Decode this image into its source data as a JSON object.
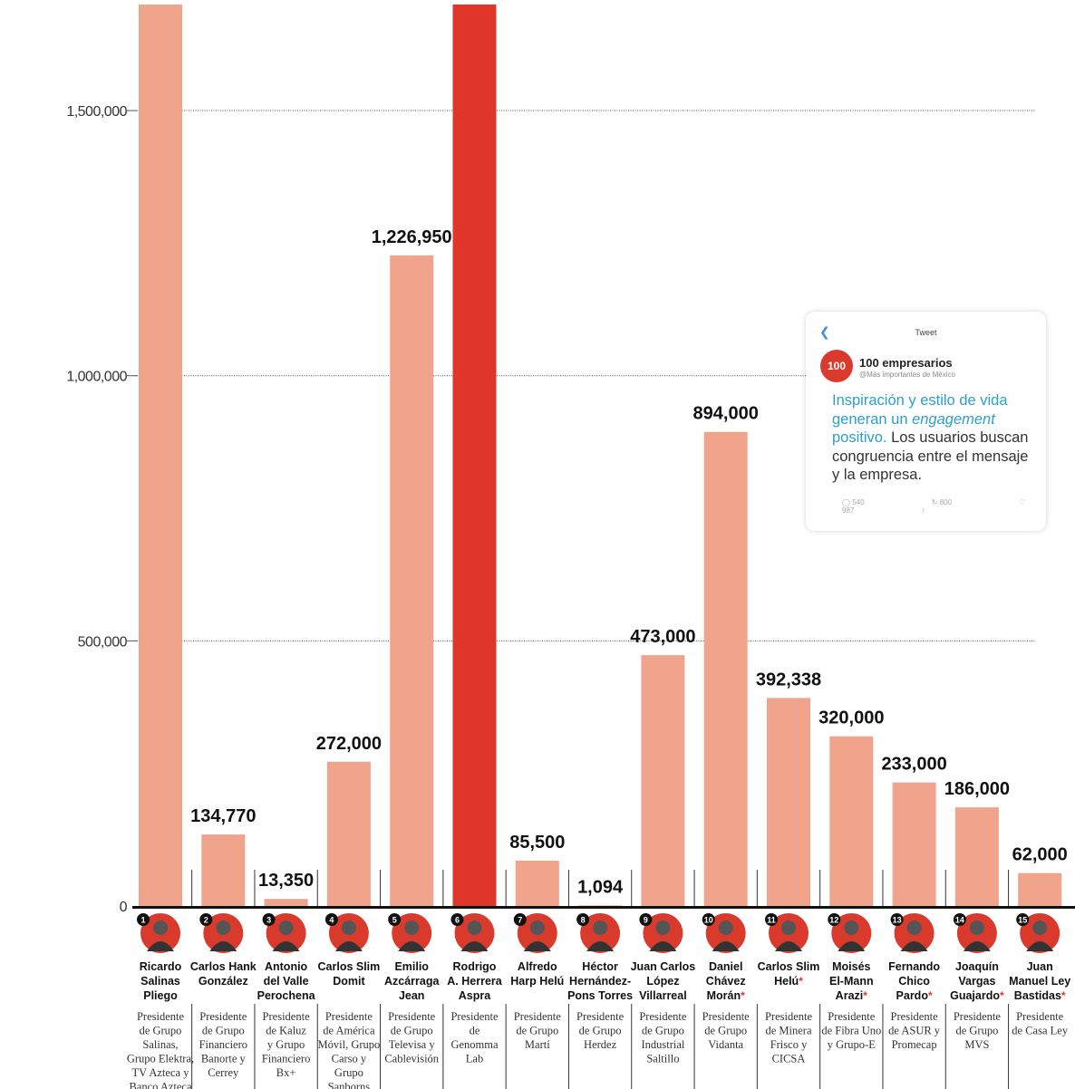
{
  "chart_data": {
    "type": "bar",
    "title": "",
    "xlabel": "",
    "ylabel": "",
    "ylim": [
      0,
      1700000
    ],
    "yticks": [
      0,
      500000,
      1000000,
      1500000
    ],
    "ytick_labels": [
      "0",
      "500,000",
      "1,000,000",
      "1,500,000"
    ],
    "grid": true,
    "bar_color": "#f0a48c",
    "highlight_color": "#e0362a",
    "bars": [
      {
        "rank": "1",
        "name": [
          "Ricardo",
          "Salinas",
          "Pliego"
        ],
        "role": [
          "Presidente",
          "de Grupo",
          "Salinas,",
          "Grupo Elektra,",
          "TV Azteca y",
          "Banco Azteca"
        ],
        "value": 1700000,
        "label": "",
        "highlight": false,
        "star": false
      },
      {
        "rank": "2",
        "name": [
          "Carlos Hank",
          "González"
        ],
        "role": [
          "Presidente",
          "de Grupo",
          "Financiero",
          "Banorte y",
          "Cerrey"
        ],
        "value": 134770,
        "label": "134,770",
        "highlight": false,
        "star": false
      },
      {
        "rank": "3",
        "name": [
          "Antonio",
          "del Valle",
          "Perochena"
        ],
        "role": [
          "Presidente",
          "de Kaluz",
          "y Grupo",
          "Financiero",
          "Bx+"
        ],
        "value": 13350,
        "label": "13,350",
        "highlight": false,
        "star": false
      },
      {
        "rank": "4",
        "name": [
          "Carlos Slim",
          "Domit"
        ],
        "role": [
          "Presidente",
          "de América",
          "Móvil, Grupo",
          "Carso y",
          "Grupo",
          "Sanborns"
        ],
        "value": 272000,
        "label": "272,000",
        "highlight": false,
        "star": false
      },
      {
        "rank": "5",
        "name": [
          "Emilio",
          "Azcárraga",
          "Jean"
        ],
        "role": [
          "Presidente",
          "de Grupo",
          "Televisa y",
          "Cablevisión"
        ],
        "value": 1226950,
        "label": "1,226,950",
        "highlight": false,
        "star": false
      },
      {
        "rank": "6",
        "name": [
          "Rodrigo",
          "A. Herrera",
          "Aspra"
        ],
        "role": [
          "Presidente",
          "de",
          "Genomma",
          "Lab"
        ],
        "value": 1700000,
        "label": "",
        "highlight": true,
        "star": false
      },
      {
        "rank": "7",
        "name": [
          "Alfredo",
          "Harp Helú"
        ],
        "role": [
          "Presidente",
          "de Grupo",
          "Martí"
        ],
        "value": 85500,
        "label": "85,500",
        "highlight": false,
        "star": false
      },
      {
        "rank": "8",
        "name": [
          "Héctor",
          "Hernández-",
          "Pons Torres"
        ],
        "role": [
          "Presidente",
          "de Grupo",
          "Herdez"
        ],
        "value": 1094,
        "label": "1,094",
        "highlight": false,
        "star": false
      },
      {
        "rank": "9",
        "name": [
          "Juan Carlos",
          "López",
          "Villarreal"
        ],
        "role": [
          "Presidente",
          "de Grupo",
          "Industrial",
          "Saltillo"
        ],
        "value": 473000,
        "label": "473,000",
        "highlight": false,
        "star": false
      },
      {
        "rank": "10",
        "name": [
          "Daniel",
          "Chávez",
          "Morán"
        ],
        "role": [
          "Presidente",
          "de Grupo",
          "Vidanta"
        ],
        "value": 894000,
        "label": "894,000",
        "highlight": false,
        "star": true
      },
      {
        "rank": "11",
        "name": [
          "Carlos Slim",
          "Helú"
        ],
        "role": [
          "Presidente",
          "de Minera",
          "Frisco y",
          "CICSA"
        ],
        "value": 392338,
        "label": "392,338",
        "highlight": false,
        "star": true
      },
      {
        "rank": "12",
        "name": [
          "Moisés",
          "El-Mann",
          "Arazi"
        ],
        "role": [
          "Presidente",
          "de Fibra Uno",
          "y Grupo-E"
        ],
        "value": 320000,
        "label": "320,000",
        "highlight": false,
        "star": true
      },
      {
        "rank": "13",
        "name": [
          "Fernando",
          "Chico",
          "Pardo"
        ],
        "role": [
          "Presidente",
          "de ASUR y",
          "Promecap"
        ],
        "value": 233000,
        "label": "233,000",
        "highlight": false,
        "star": true
      },
      {
        "rank": "14",
        "name": [
          "Joaquín",
          "Vargas",
          "Guajardo"
        ],
        "role": [
          "Presidente",
          "de Grupo",
          "MVS"
        ],
        "value": 186000,
        "label": "186,000",
        "highlight": false,
        "star": true
      },
      {
        "rank": "15",
        "name": [
          "Juan",
          "Manuel Ley",
          "Bastidas"
        ],
        "role": [
          "Presidente",
          "de Casa Ley"
        ],
        "value": 62000,
        "label": "62,000",
        "highlight": false,
        "star": true
      }
    ]
  },
  "tweet": {
    "back_icon": "chevron-left-icon",
    "title": "Tweet",
    "avatar_text": "100",
    "username": "100 empresarios",
    "handle": "@Más importantes de México",
    "text_highlight_1": "Inspiración y estilo de vida generan un ",
    "text_emphasis": "engagement",
    "text_highlight_2": " positivo.",
    "text_rest": " Los usuarios buscan congruencia entre el mensaje y la empresa.",
    "action_reply": "540",
    "action_retweet": "800",
    "action_like": "987"
  }
}
